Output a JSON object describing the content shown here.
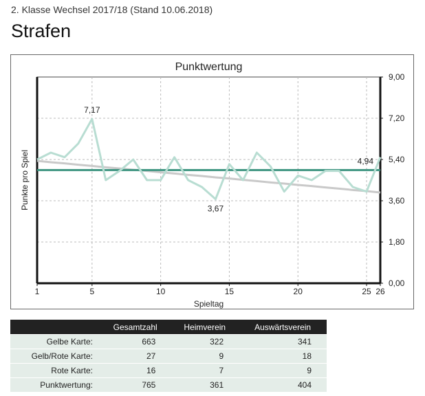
{
  "header": {
    "subtitle": "2. Klasse Wechsel 2017/18 (Stand 10.06.2018)",
    "title": "Strafen"
  },
  "chart_data": {
    "type": "line",
    "title": "Punktwertung",
    "xlabel": "Spieltag",
    "ylabel": "Punkte pro Spiel",
    "xlim": [
      1,
      26
    ],
    "ylim": [
      0,
      9
    ],
    "x_ticks": [
      "1",
      "5",
      "10",
      "15",
      "20",
      "25",
      "26"
    ],
    "x_tick_values": [
      1,
      5,
      10,
      15,
      20,
      25,
      26
    ],
    "y_ticks": [
      "0,00",
      "1,80",
      "3,60",
      "5,40",
      "7,20",
      "9,00"
    ],
    "y_tick_values": [
      0,
      1.8,
      3.6,
      5.4,
      7.2,
      9
    ],
    "grid": true,
    "x": [
      1,
      2,
      3,
      4,
      5,
      6,
      7,
      8,
      9,
      10,
      11,
      12,
      13,
      14,
      15,
      16,
      17,
      18,
      19,
      20,
      21,
      22,
      23,
      24,
      25,
      26
    ],
    "series": [
      {
        "values": [
          5.4,
          5.7,
          5.5,
          6.1,
          7.17,
          4.5,
          4.9,
          5.4,
          4.5,
          4.5,
          5.5,
          4.5,
          4.2,
          3.67,
          5.2,
          4.5,
          5.7,
          5.1,
          4.0,
          4.7,
          4.5,
          4.9,
          4.9,
          4.2,
          4.0,
          5.5
        ],
        "color": "#b8ddd2"
      },
      {
        "values": [
          5.34,
          5.28,
          5.23,
          5.17,
          5.12,
          5.06,
          5.01,
          4.95,
          4.9,
          4.84,
          4.79,
          4.73,
          4.68,
          4.62,
          4.57,
          4.51,
          4.46,
          4.4,
          4.35,
          4.29,
          4.24,
          4.18,
          4.13,
          4.07,
          4.02,
          3.96
        ],
        "color": "#c9c9c9"
      },
      {
        "values": [
          4.94,
          4.94,
          4.94,
          4.94,
          4.94,
          4.94,
          4.94,
          4.94,
          4.94,
          4.94,
          4.94,
          4.94,
          4.94,
          4.94,
          4.94,
          4.94,
          4.94,
          4.94,
          4.94,
          4.94,
          4.94,
          4.94,
          4.94,
          4.94,
          4.94,
          4.94
        ],
        "color": "#3d9480"
      }
    ],
    "annotations": [
      {
        "x": 5,
        "y": 7.17,
        "text": "7,17",
        "position": "above"
      },
      {
        "x": 14,
        "y": 3.67,
        "text": "3,67",
        "position": "below"
      },
      {
        "x": 26,
        "y": 4.94,
        "text": "4,94",
        "position": "above-left"
      }
    ]
  },
  "table": {
    "columns": [
      "",
      "Gesamtzahl",
      "Heimverein",
      "Auswärtsverein"
    ],
    "rows": [
      [
        "Gelbe Karte:",
        "663",
        "322",
        "341"
      ],
      [
        "Gelb/Rote Karte:",
        "27",
        "9",
        "18"
      ],
      [
        "Rote Karte:",
        "16",
        "7",
        "9"
      ],
      [
        "Punktwertung:",
        "765",
        "361",
        "404"
      ]
    ]
  }
}
